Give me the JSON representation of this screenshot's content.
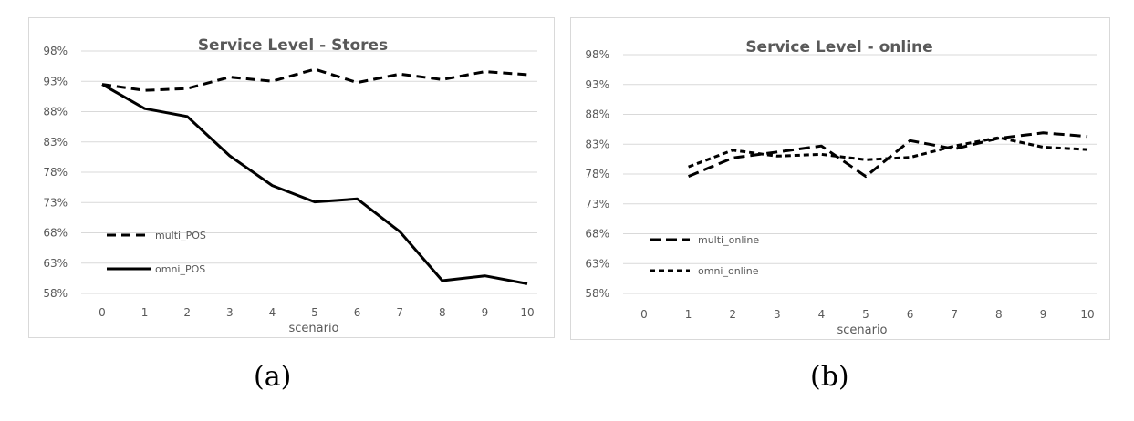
{
  "captions": [
    "(a)",
    "(b)"
  ],
  "chart_data": [
    {
      "type": "line",
      "title": "Service Level - Stores",
      "xlabel": "scenario",
      "ylabel": "",
      "x": [
        0,
        1,
        2,
        3,
        4,
        5,
        6,
        7,
        8,
        9,
        10
      ],
      "y_ticks": [
        "58%",
        "63%",
        "68%",
        "73%",
        "78%",
        "83%",
        "88%",
        "93%",
        "98%"
      ],
      "ylim": [
        0.58,
        0.98
      ],
      "grid": true,
      "legend_position": "left",
      "series": [
        {
          "name": "multi_POS",
          "style": "dashed",
          "color": "#000000",
          "values": [
            0.925,
            0.915,
            0.918,
            0.937,
            0.93,
            0.95,
            0.928,
            0.942,
            0.933,
            0.946,
            0.941
          ]
        },
        {
          "name": "omni_POS",
          "style": "solid",
          "color": "#000000",
          "values": [
            0.925,
            0.885,
            0.872,
            0.807,
            0.758,
            0.731,
            0.736,
            0.682,
            0.601,
            0.609,
            0.596
          ]
        }
      ]
    },
    {
      "type": "line",
      "title": "Service Level - online",
      "xlabel": "scenario",
      "ylabel": "",
      "x": [
        0,
        1,
        2,
        3,
        4,
        5,
        6,
        7,
        8,
        9,
        10
      ],
      "y_ticks": [
        "58%",
        "63%",
        "68%",
        "73%",
        "78%",
        "83%",
        "88%",
        "93%",
        "98%"
      ],
      "ylim": [
        0.58,
        0.98
      ],
      "grid": true,
      "legend_position": "left",
      "series": [
        {
          "name": "multi_online",
          "style": "long-dash",
          "color": "#000000",
          "values": [
            null,
            0.776,
            0.807,
            0.817,
            0.827,
            0.776,
            0.836,
            0.822,
            0.84,
            0.849,
            0.843
          ]
        },
        {
          "name": "omni_online",
          "style": "short-dash",
          "color": "#000000",
          "values": [
            null,
            0.792,
            0.82,
            0.81,
            0.813,
            0.804,
            0.808,
            0.827,
            0.841,
            0.825,
            0.821
          ]
        }
      ]
    }
  ]
}
